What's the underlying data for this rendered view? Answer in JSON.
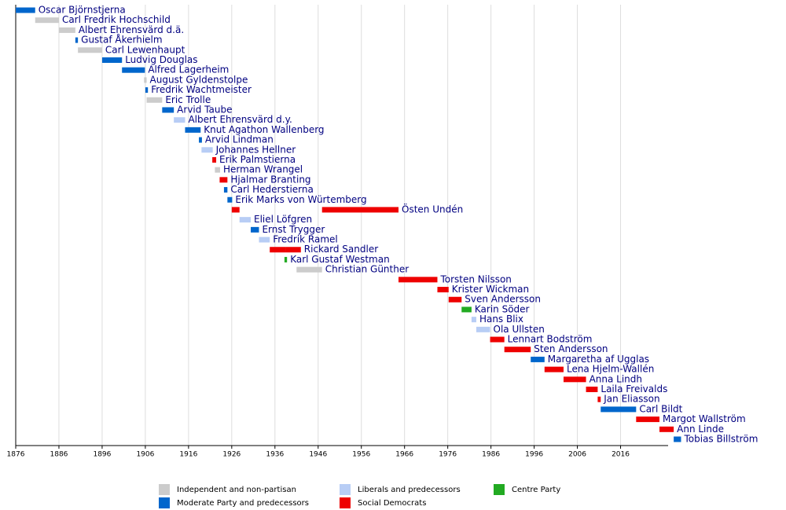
{
  "chart_data": {
    "type": "timeline",
    "xlim": [
      1876,
      2027
    ],
    "xticks": [
      1876,
      1886,
      1896,
      1906,
      1916,
      1926,
      1936,
      1946,
      1956,
      1966,
      1976,
      1986,
      1996,
      2006,
      2016
    ],
    "grid": true,
    "legend": [
      {
        "name": "Independent and non-partisan",
        "color": "#cccccc"
      },
      {
        "name": "Moderate Party and predecessors",
        "color": "#0066cc"
      },
      {
        "name": "Liberals and predecessors",
        "color": "#b8cdf5"
      },
      {
        "name": "Social Democrats",
        "color": "#ee0000"
      },
      {
        "name": "Centre Party",
        "color": "#22aa22"
      }
    ],
    "rows": [
      {
        "name": "Oscar Björnstjerna",
        "color": "#0066cc",
        "periods": [
          [
            1876,
            1880.5
          ]
        ]
      },
      {
        "name": "Carl Fredrik Hochschild",
        "color": "#cccccc",
        "periods": [
          [
            1880.5,
            1886
          ]
        ]
      },
      {
        "name": "Albert Ehrensvärd d.ä.",
        "color": "#cccccc",
        "periods": [
          [
            1886,
            1889.8
          ]
        ]
      },
      {
        "name": "Gustaf Åkerhielm",
        "color": "#0066cc",
        "periods": [
          [
            1889.8,
            1890.4
          ]
        ]
      },
      {
        "name": "Carl Lewenhaupt",
        "color": "#cccccc",
        "periods": [
          [
            1890.4,
            1896
          ]
        ]
      },
      {
        "name": "Ludvig Douglas",
        "color": "#0066cc",
        "periods": [
          [
            1896,
            1900.6
          ]
        ]
      },
      {
        "name": "Alfred Lagerheim",
        "color": "#0066cc",
        "periods": [
          [
            1900.6,
            1905.9
          ]
        ]
      },
      {
        "name": "August Gyldenstolpe",
        "color": "#cccccc",
        "periods": [
          [
            1905.7,
            1906.3
          ]
        ]
      },
      {
        "name": "Fredrik Wachtmeister",
        "color": "#0066cc",
        "periods": [
          [
            1906,
            1906.6
          ]
        ]
      },
      {
        "name": "Eric Trolle",
        "color": "#cccccc",
        "periods": [
          [
            1906.3,
            1909.9
          ]
        ]
      },
      {
        "name": "Arvid Taube",
        "color": "#0066cc",
        "periods": [
          [
            1909.9,
            1912.6
          ]
        ]
      },
      {
        "name": "Albert Ehrensvärd d.y.",
        "color": "#b8cdf5",
        "periods": [
          [
            1912.6,
            1915.2
          ]
        ]
      },
      {
        "name": "Knut Agathon Wallenberg",
        "color": "#0066cc",
        "periods": [
          [
            1915.2,
            1918.8
          ]
        ]
      },
      {
        "name": "Arvid Lindman",
        "color": "#0066cc",
        "periods": [
          [
            1918.4,
            1919.1
          ]
        ]
      },
      {
        "name": "Johannes Hellner",
        "color": "#b8cdf5",
        "periods": [
          [
            1919,
            1921.6
          ]
        ]
      },
      {
        "name": "Erik Palmstierna",
        "color": "#ee0000",
        "periods": [
          [
            1921.5,
            1922.4
          ]
        ]
      },
      {
        "name": "Herman Wrangel",
        "color": "#cccccc",
        "periods": [
          [
            1922.1,
            1923.3
          ]
        ]
      },
      {
        "name": "Hjalmar Branting",
        "color": "#ee0000",
        "periods": [
          [
            1923.2,
            1925
          ]
        ]
      },
      {
        "name": "Carl Hederstierna",
        "color": "#0066cc",
        "periods": [
          [
            1924.2,
            1925
          ]
        ]
      },
      {
        "name": "Erik Marks von Würtemberg",
        "color": "#0066cc",
        "periods": [
          [
            1925,
            1926.1
          ]
        ]
      },
      {
        "name": "Östen Undén",
        "color": "#ee0000",
        "periods": [
          [
            1926,
            1927.8
          ],
          [
            1946.9,
            1964.6
          ]
        ]
      },
      {
        "name": "Eliel Löfgren",
        "color": "#b8cdf5",
        "periods": [
          [
            1927.8,
            1930.4
          ]
        ]
      },
      {
        "name": "Ernst Trygger",
        "color": "#0066cc",
        "periods": [
          [
            1930.4,
            1932.3
          ]
        ]
      },
      {
        "name": "Fredrik Ramel",
        "color": "#b8cdf5",
        "periods": [
          [
            1932.3,
            1934.8
          ]
        ]
      },
      {
        "name": "Rickard Sandler",
        "color": "#ee0000",
        "periods": [
          [
            1934.8,
            1938.5
          ],
          [
            1938.5,
            1942
          ]
        ]
      },
      {
        "name": "Karl Gustaf Westman",
        "color": "#22aa22",
        "periods": [
          [
            1938.2,
            1938.8
          ]
        ]
      },
      {
        "name": "Christian Günther",
        "color": "#cccccc",
        "periods": [
          [
            1941,
            1946.9
          ]
        ]
      },
      {
        "name": "Torsten Nilsson",
        "color": "#ee0000",
        "periods": [
          [
            1964.6,
            1973.6
          ]
        ]
      },
      {
        "name": "Krister Wickman",
        "color": "#ee0000",
        "periods": [
          [
            1973.6,
            1976.2
          ]
        ]
      },
      {
        "name": "Sven Andersson",
        "color": "#ee0000",
        "periods": [
          [
            1976.2,
            1979.2
          ]
        ]
      },
      {
        "name": "Karin Söder",
        "color": "#22aa22",
        "periods": [
          [
            1979.2,
            1981.5
          ]
        ]
      },
      {
        "name": "Hans Blix",
        "color": "#b8cdf5",
        "periods": [
          [
            1981.5,
            1982.6
          ]
        ]
      },
      {
        "name": "Ola Ullsten",
        "color": "#b8cdf5",
        "periods": [
          [
            1982.6,
            1985.8
          ]
        ]
      },
      {
        "name": "Lennart Bodström",
        "color": "#ee0000",
        "periods": [
          [
            1985.8,
            1989.1
          ]
        ]
      },
      {
        "name": "Sten Andersson",
        "color": "#ee0000",
        "periods": [
          [
            1989.1,
            1995.2
          ]
        ]
      },
      {
        "name": "Margaretha af Ugglas",
        "color": "#0066cc",
        "periods": [
          [
            1995.2,
            1998.4
          ]
        ]
      },
      {
        "name": "Lena Hjelm-Wallén",
        "color": "#ee0000",
        "periods": [
          [
            1998.4,
            2002.8
          ]
        ]
      },
      {
        "name": "Anna Lindh",
        "color": "#ee0000",
        "periods": [
          [
            2002.8,
            2008
          ]
        ]
      },
      {
        "name": "Laila Freivalds",
        "color": "#ee0000",
        "periods": [
          [
            2008,
            2010.7
          ]
        ]
      },
      {
        "name": "Jan Eliasson",
        "color": "#ee0000",
        "periods": [
          [
            2010.7,
            2011.4
          ]
        ]
      },
      {
        "name": "Carl Bildt",
        "color": "#0066cc",
        "periods": [
          [
            2011.4,
            2019.6
          ]
        ]
      },
      {
        "name": "Margot Wallström",
        "color": "#ee0000",
        "periods": [
          [
            2019.6,
            2025
          ]
        ]
      },
      {
        "name": "Ann Linde",
        "color": "#ee0000",
        "periods": [
          [
            2025,
            2028.3
          ]
        ]
      },
      {
        "name": "Tobias Billström",
        "color": "#0066cc",
        "periods": [
          [
            2028.3,
            2030
          ]
        ]
      }
    ]
  }
}
